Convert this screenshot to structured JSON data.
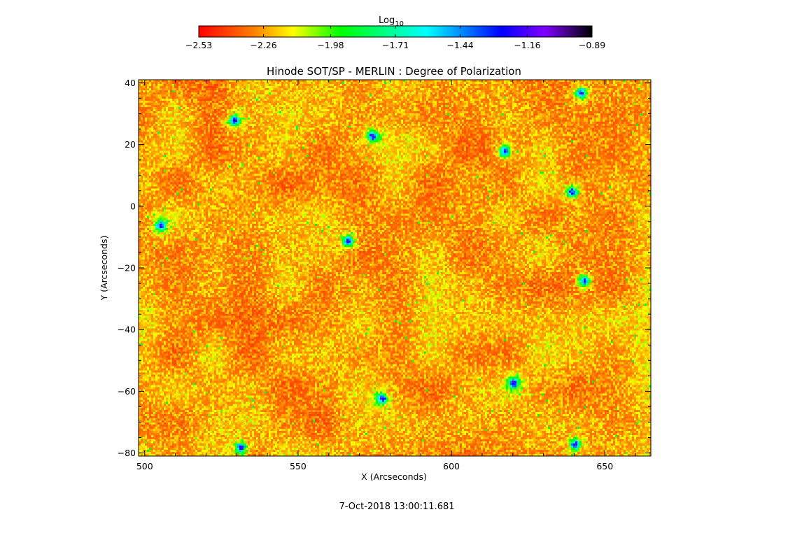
{
  "chart_data": {
    "type": "heatmap",
    "title": "Hinode SOT/SP - MERLIN : Degree of Polarization",
    "xlabel": "X (Arcseconds)",
    "ylabel": "Y (Arcseconds)",
    "xlim": [
      498,
      665
    ],
    "ylim": [
      -81,
      41
    ],
    "x_ticks": [
      500,
      550,
      600,
      650
    ],
    "x_tick_labels": [
      "500",
      "550",
      "600",
      "650"
    ],
    "y_ticks": [
      40,
      20,
      0,
      -20,
      -40,
      -60,
      -80
    ],
    "y_tick_labels": [
      "40",
      "20",
      "0",
      "−20",
      "−40",
      "−60",
      "−80"
    ],
    "colorbar": {
      "title_base": "Log",
      "title_sub": "10",
      "range": [
        -2.53,
        -0.89
      ],
      "ticks": [
        -2.53,
        -2.26,
        -1.98,
        -1.71,
        -1.44,
        -1.16,
        -0.89
      ],
      "tick_labels": [
        "−2.53",
        "−2.26",
        "−1.98",
        "−1.71",
        "−1.44",
        "−1.16",
        "−0.89"
      ],
      "colormap": [
        "#ff0000",
        "#ff8000",
        "#ffff00",
        "#00ff00",
        "#00ffff",
        "#0000ff",
        "#8000ff",
        "#000000"
      ]
    },
    "image_typical_log10_range": [
      -2.53,
      -2.05
    ],
    "high_polarization_patches": [
      {
        "x": 529,
        "y": 28
      },
      {
        "x": 574,
        "y": 23
      },
      {
        "x": 617,
        "y": 18
      },
      {
        "x": 642,
        "y": 37
      },
      {
        "x": 566,
        "y": -11
      },
      {
        "x": 643,
        "y": -24
      },
      {
        "x": 620,
        "y": -57
      },
      {
        "x": 577,
        "y": -62
      },
      {
        "x": 531,
        "y": -78
      },
      {
        "x": 505,
        "y": -6
      },
      {
        "x": 640,
        "y": -77
      },
      {
        "x": 639,
        "y": 5
      }
    ],
    "grid": false,
    "legend": "colorbar-top"
  },
  "footer": {
    "timestamp": "7-Oct-2018 13:00:11.681"
  }
}
